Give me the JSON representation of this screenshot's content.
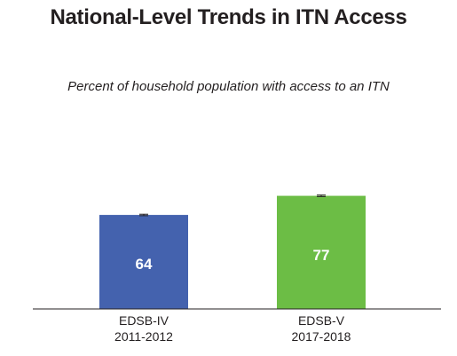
{
  "chart_data": {
    "type": "bar",
    "title": "National-Level Trends in ITN Access",
    "subtitle": "Percent of household population with access to an ITN",
    "categories": [
      [
        "EDSB-IV",
        "2011-2012"
      ],
      [
        "EDSB-V",
        "2017-2018"
      ]
    ],
    "values": [
      64,
      77
    ],
    "data_labels": [
      "64",
      "77"
    ],
    "error_bars": [
      [
        63.5,
        64.5
      ],
      [
        76.5,
        77.5
      ]
    ],
    "colors": [
      "#4462ae",
      "#6cbd45"
    ],
    "ylim": [
      0,
      100
    ],
    "grid": false,
    "legend": false
  }
}
